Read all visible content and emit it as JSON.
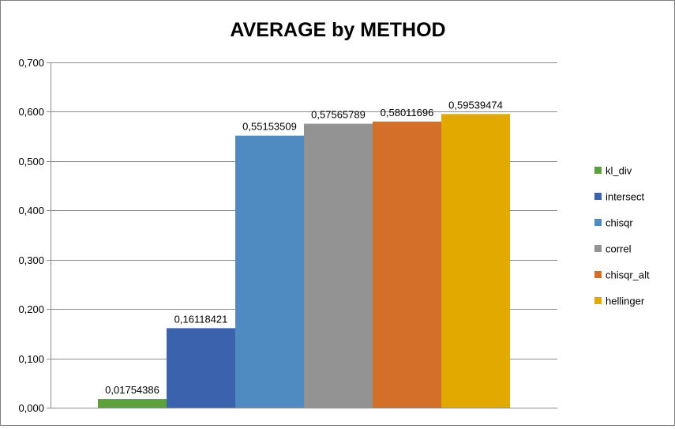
{
  "chart_data": {
    "type": "bar",
    "title": "AVERAGE by METHOD",
    "xlabel": "",
    "ylabel": "",
    "ylim": [
      0,
      0.7
    ],
    "ytick_step": 0.1,
    "yticks": [
      "0,000",
      "0,100",
      "0,200",
      "0,300",
      "0,400",
      "0,500",
      "0,600",
      "0,700"
    ],
    "grid": true,
    "legend_position": "right",
    "series": [
      {
        "name": "kl_div",
        "value": 0.01754386,
        "label": "0,01754386",
        "color": "#5ea03c"
      },
      {
        "name": "intersect",
        "value": 0.16118421,
        "label": "0,16118421",
        "color": "#3b63ad"
      },
      {
        "name": "chisqr",
        "value": 0.55153509,
        "label": "0,55153509",
        "color": "#4f8bc0"
      },
      {
        "name": "correl",
        "value": 0.57565789,
        "label": "0,57565789",
        "color": "#939393"
      },
      {
        "name": "chisqr_alt",
        "value": 0.58011696,
        "label": "0,58011696",
        "color": "#d46f29"
      },
      {
        "name": "hellinger",
        "value": 0.59539474,
        "label": "0,59539474",
        "color": "#e2a900"
      }
    ]
  }
}
